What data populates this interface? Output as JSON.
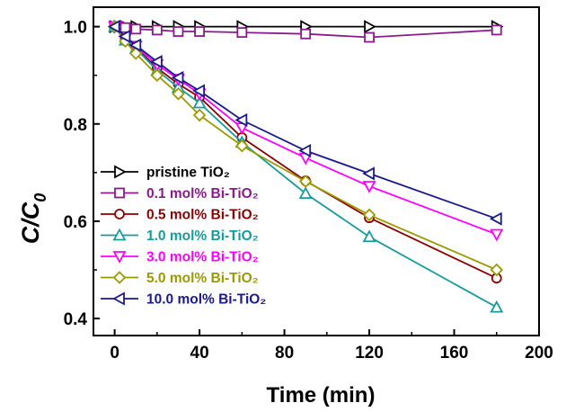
{
  "chart_data": {
    "type": "line",
    "xlabel": "Time (min)",
    "ylabel": {
      "main": "C/C",
      "sub": "0"
    },
    "xlim": [
      -10,
      200
    ],
    "ylim": [
      0.365,
      1.04
    ],
    "xticks": [
      0,
      40,
      80,
      120,
      160,
      200
    ],
    "xtick_labels": [
      "0",
      "40",
      "80",
      "120",
      "160",
      "200"
    ],
    "yticks": [
      0.4,
      0.6,
      0.8,
      1.0
    ],
    "ytick_labels": [
      "0.4",
      "0.6",
      "0.8",
      "1.0"
    ],
    "legend_placement": "lower-left",
    "series": [
      {
        "name": "pristine TiO₂",
        "color": "#000000",
        "marker": "triangle-right",
        "x": [
          0,
          2,
          5,
          10,
          20,
          30,
          40,
          60,
          90,
          120,
          180
        ],
        "y": [
          1.0,
          1.0,
          1.0,
          1.0,
          1.0,
          1.0,
          1.0,
          1.0,
          1.0,
          1.0,
          1.0
        ]
      },
      {
        "name": "0.1 mol% Bi-TiO₂",
        "color": "#8B1A8B",
        "marker": "square",
        "x": [
          0,
          2,
          5,
          10,
          20,
          30,
          40,
          60,
          90,
          120,
          180
        ],
        "y": [
          1.0,
          1.0,
          0.998,
          0.995,
          0.993,
          0.99,
          0.99,
          0.988,
          0.985,
          0.978,
          0.993
        ]
      },
      {
        "name": "0.5 mol% Bi-TiO₂",
        "color": "#8B0000",
        "marker": "circle",
        "x": [
          0,
          5,
          10,
          20,
          30,
          40,
          60,
          90,
          120,
          180
        ],
        "y": [
          1.0,
          0.975,
          0.957,
          0.915,
          0.882,
          0.855,
          0.772,
          0.683,
          0.607,
          0.483
        ]
      },
      {
        "name": "1.0 mol% Bi-TiO₂",
        "color": "#169C9C",
        "marker": "triangle-up",
        "x": [
          0,
          5,
          10,
          20,
          30,
          40,
          60,
          90,
          120,
          180
        ],
        "y": [
          1.0,
          0.972,
          0.955,
          0.91,
          0.875,
          0.843,
          0.762,
          0.657,
          0.568,
          0.423
        ]
      },
      {
        "name": "3.0 mol% Bi-TiO₂",
        "color": "#FF00FF",
        "marker": "triangle-down",
        "x": [
          0,
          5,
          10,
          20,
          30,
          40,
          60,
          90,
          120,
          180
        ],
        "y": [
          1.0,
          0.975,
          0.96,
          0.922,
          0.892,
          0.862,
          0.792,
          0.73,
          0.672,
          0.573
        ]
      },
      {
        "name": "5.0 mol% Bi-TiO₂",
        "color": "#9A9A00",
        "marker": "diamond",
        "x": [
          0,
          5,
          10,
          20,
          30,
          40,
          60,
          90,
          120,
          180
        ],
        "y": [
          1.0,
          0.97,
          0.945,
          0.9,
          0.862,
          0.818,
          0.755,
          0.682,
          0.613,
          0.5
        ]
      },
      {
        "name": "10.0 mol% Bi-TiO₂",
        "color": "#1A1A8B",
        "marker": "triangle-left",
        "x": [
          0,
          5,
          10,
          20,
          30,
          40,
          60,
          90,
          120,
          180
        ],
        "y": [
          1.0,
          0.98,
          0.962,
          0.928,
          0.895,
          0.868,
          0.808,
          0.745,
          0.698,
          0.605
        ]
      }
    ]
  }
}
